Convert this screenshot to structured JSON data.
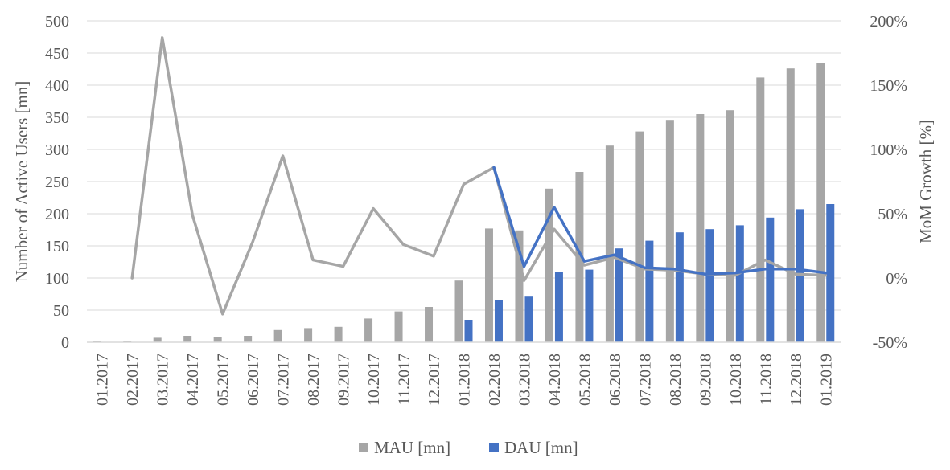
{
  "chart_data": {
    "type": "bar",
    "categories": [
      "01.2017",
      "02.2017",
      "03.2017",
      "04.2017",
      "05.2017",
      "06.2017",
      "07.2017",
      "08.2017",
      "09.2017",
      "10.2017",
      "11.2017",
      "12.2017",
      "01.2018",
      "02.2018",
      "03.2018",
      "04.2018",
      "05.2018",
      "06.2018",
      "07.2018",
      "08.2018",
      "09.2018",
      "10.2018",
      "11.2018",
      "12.2018",
      "01.2019"
    ],
    "series": [
      {
        "name": "MAU [mn]",
        "kind": "bar",
        "axis": "left",
        "color": "#a6a6a6",
        "values": [
          2,
          2,
          7,
          10,
          8,
          10,
          19,
          22,
          24,
          37,
          48,
          55,
          96,
          177,
          174,
          239,
          265,
          306,
          328,
          346,
          355,
          361,
          412,
          426,
          435
        ]
      },
      {
        "name": "DAU [mn]",
        "kind": "bar",
        "axis": "left",
        "color": "#4472c4",
        "values": [
          null,
          null,
          null,
          null,
          null,
          null,
          null,
          null,
          null,
          null,
          null,
          null,
          35,
          65,
          71,
          110,
          113,
          146,
          158,
          171,
          176,
          182,
          194,
          207,
          215
        ]
      },
      {
        "kind": "line",
        "axis": "right",
        "color": "#a6a6a6",
        "values": [
          null,
          0,
          187,
          49,
          -28,
          28,
          95,
          14,
          9,
          54,
          26,
          17,
          73,
          86,
          -2,
          38,
          10,
          16,
          7,
          6,
          3,
          2,
          14,
          3,
          2
        ]
      },
      {
        "kind": "line",
        "axis": "right",
        "color": "#4472c4",
        "values": [
          null,
          null,
          null,
          null,
          null,
          null,
          null,
          null,
          null,
          null,
          null,
          null,
          null,
          86,
          9,
          55,
          13,
          18,
          8,
          7,
          3,
          4,
          7,
          7,
          4
        ]
      }
    ],
    "y_left": {
      "label": "Number of Active Users [mn]",
      "min": 0,
      "max": 500,
      "ticks": [
        "0",
        "50",
        "100",
        "150",
        "200",
        "250",
        "300",
        "350",
        "400",
        "450",
        "500"
      ]
    },
    "y_right": {
      "label": "MoM Growth [%]",
      "min": -50,
      "max": 200,
      "ticks": [
        "-50%",
        "0%",
        "50%",
        "100%",
        "150%",
        "200%"
      ]
    },
    "grid": true,
    "legend": {
      "position": "bottom",
      "entries": [
        {
          "label": "MAU [mn]",
          "color": "#a6a6a6"
        },
        {
          "label": "DAU [mn]",
          "color": "#4472c4"
        }
      ]
    }
  }
}
